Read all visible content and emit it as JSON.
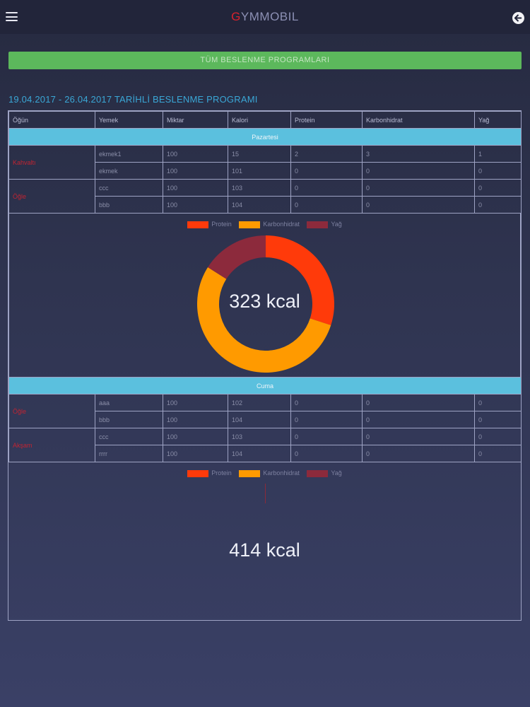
{
  "header": {
    "brand_first": "G",
    "brand_rest": "YMMOBIL"
  },
  "all_programs_button": "TÜM BESLENME PROGRAMLARI",
  "program_title": "19.04.2017 - 26.04.2017 TARİHLİ BESLENME PROGRAMI",
  "table_headers": [
    "Öğün",
    "Yemek",
    "Miktar",
    "Kalori",
    "Protein",
    "Karbonhidrat",
    "Yağ"
  ],
  "legend": [
    "Protein",
    "Karbonhidrat",
    "Yağ"
  ],
  "colors": {
    "protein": "#ff3a0a",
    "karbonhidrat": "#ff9a00",
    "yag": "#8c2a3c",
    "accent": "#5bc0de",
    "button": "#5cb85c"
  },
  "days": [
    {
      "name": "Pazartesi",
      "meals": [
        {
          "meal": "Kahvaltı",
          "foods": [
            {
              "food": "ekmek1",
              "amount": "100",
              "calorie": "15",
              "protein": "2",
              "carb": "3",
              "fat": "1"
            },
            {
              "food": "ekmek",
              "amount": "100",
              "calorie": "101",
              "protein": "0",
              "carb": "0",
              "fat": "0"
            }
          ]
        },
        {
          "meal": "Öğle",
          "foods": [
            {
              "food": "ccc",
              "amount": "100",
              "calorie": "103",
              "protein": "0",
              "carb": "0",
              "fat": "0"
            },
            {
              "food": "bbb",
              "amount": "100",
              "calorie": "104",
              "protein": "0",
              "carb": "0",
              "fat": "0"
            }
          ]
        }
      ],
      "total_kcal": "323 kcal",
      "chart": {
        "protein": 0.3,
        "karbonhidrat": 0.54,
        "yag": 0.16
      }
    },
    {
      "name": "Cuma",
      "meals": [
        {
          "meal": "Öğle",
          "foods": [
            {
              "food": "aaa",
              "amount": "100",
              "calorie": "102",
              "protein": "0",
              "carb": "0",
              "fat": "0"
            },
            {
              "food": "bbb",
              "amount": "100",
              "calorie": "104",
              "protein": "0",
              "carb": "0",
              "fat": "0"
            }
          ]
        },
        {
          "meal": "Akşam",
          "foods": [
            {
              "food": "ccc",
              "amount": "100",
              "calorie": "103",
              "protein": "0",
              "carb": "0",
              "fat": "0"
            },
            {
              "food": "rrrr",
              "amount": "100",
              "calorie": "104",
              "protein": "0",
              "carb": "0",
              "fat": "0"
            }
          ]
        }
      ],
      "total_kcal": "414 kcal",
      "chart": {
        "protein": 0,
        "karbonhidrat": 0,
        "yag": 0
      }
    }
  ]
}
